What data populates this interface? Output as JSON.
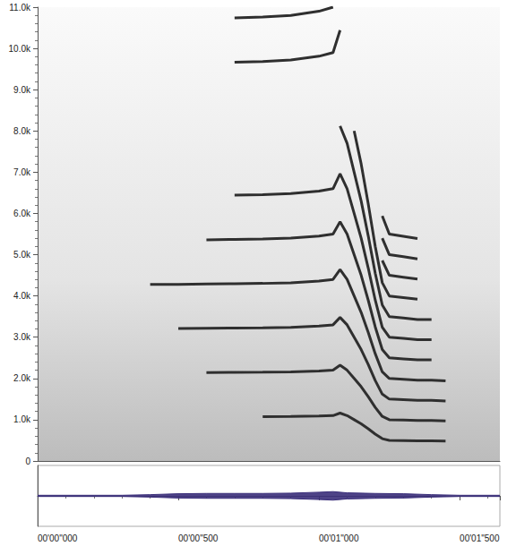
{
  "chart_data": [
    {
      "type": "line",
      "color": "#2f2f2f",
      "x": [
        400,
        500,
        600,
        700,
        800,
        900,
        1000,
        1050,
        1075,
        1100,
        1125,
        1150,
        1175,
        1200,
        1225,
        1250,
        1300,
        1350,
        1400,
        1450
      ],
      "series": [
        {
          "values": [
            null,
            null,
            null,
            null,
            1076,
            1080,
            1090,
            1100,
            1160,
            1100,
            1000,
            900,
            780,
            650,
            540,
            500,
            495,
            490,
            490,
            485
          ]
        },
        {
          "values": [
            null,
            null,
            2144,
            2148,
            2152,
            2160,
            2180,
            2200,
            2320,
            2200,
            2000,
            1800,
            1560,
            1300,
            1080,
            1000,
            990,
            980,
            980,
            970
          ]
        },
        {
          "values": [
            null,
            3210,
            3216,
            3222,
            3228,
            3240,
            3270,
            3300,
            3480,
            3300,
            3000,
            2700,
            2340,
            1950,
            1620,
            1500,
            1485,
            1470,
            1470,
            1455
          ]
        },
        {
          "values": [
            4280,
            4280,
            4288,
            4296,
            4304,
            4320,
            4360,
            4400,
            4640,
            4400,
            4000,
            3600,
            3120,
            2600,
            2160,
            2000,
            1980,
            1960,
            1960,
            1940
          ]
        },
        {
          "values": [
            null,
            null,
            5360,
            5370,
            5380,
            5400,
            5450,
            5500,
            5800,
            5500,
            5000,
            4500,
            3900,
            3250,
            2700,
            2500,
            2475,
            2450,
            2450,
            null
          ]
        },
        {
          "values": [
            null,
            null,
            null,
            6444,
            6456,
            6480,
            6540,
            6600,
            6960,
            6600,
            6000,
            5400,
            4680,
            3900,
            3240,
            3000,
            2970,
            2940,
            2940,
            null
          ]
        },
        {
          "values": [
            null,
            null,
            null,
            null,
            null,
            null,
            null,
            null,
            8120,
            7700,
            7000,
            6300,
            5460,
            4550,
            3780,
            3500,
            3465,
            3430,
            3430,
            null
          ]
        },
        {
          "values": [
            null,
            null,
            null,
            null,
            null,
            null,
            null,
            null,
            null,
            null,
            8000,
            7200,
            6240,
            5200,
            4320,
            4000,
            3960,
            3920,
            null,
            null
          ]
        },
        {
          "values": [
            null,
            null,
            null,
            9666,
            9684,
            9720,
            9810,
            9900,
            10440,
            null,
            null,
            null,
            null,
            null,
            4860,
            4500,
            4455,
            4410,
            null,
            null
          ]
        },
        {
          "values": [
            null,
            null,
            null,
            10740,
            10760,
            10800,
            10900,
            11000,
            null,
            null,
            null,
            null,
            null,
            null,
            5400,
            5000,
            4950,
            4900,
            null,
            null
          ]
        },
        {
          "values": [
            null,
            null,
            null,
            null,
            null,
            null,
            null,
            null,
            null,
            null,
            null,
            null,
            null,
            null,
            5940,
            5500,
            5445,
            5390,
            null,
            null
          ]
        }
      ],
      "xlim": [
        0,
        1643
      ],
      "ylim": [
        0,
        11000
      ],
      "yticks": [
        0,
        {
          "value": 1000,
          "label": "1.0k"
        },
        {
          "value": 2000,
          "label": "2.0k"
        },
        {
          "value": 3000,
          "label": "3.0k"
        },
        {
          "value": 4000,
          "label": "4.0k"
        },
        {
          "value": 5000,
          "label": "5.0k"
        },
        {
          "value": 6000,
          "label": "6.0k"
        },
        {
          "value": 7000,
          "label": "7.0k"
        },
        {
          "value": 8000,
          "label": "8.0k"
        },
        {
          "value": 9000,
          "label": "9.0k"
        },
        {
          "value": 10000,
          "label": "10.0k"
        },
        {
          "value": 11000,
          "label": "11.0k"
        }
      ],
      "tick_labels": "y",
      "grid": false
    },
    {
      "type": "area",
      "color": "#3b2f7a",
      "x": [
        0,
        300,
        400,
        500,
        600,
        700,
        800,
        900,
        1000,
        1050,
        1100,
        1200,
        1300,
        1400,
        1500,
        1643
      ],
      "series": [
        {
          "values": [
            0.02,
            0.02,
            0.04,
            0.07,
            0.08,
            0.08,
            0.08,
            0.09,
            0.12,
            0.14,
            0.1,
            0.08,
            0.07,
            0.04,
            0.02,
            0.02
          ]
        },
        {
          "values": [
            -0.02,
            -0.02,
            -0.04,
            -0.07,
            -0.08,
            -0.08,
            -0.08,
            -0.09,
            -0.12,
            -0.14,
            -0.1,
            -0.08,
            -0.07,
            -0.04,
            -0.02,
            -0.02
          ]
        }
      ],
      "xlim": [
        0,
        1643
      ],
      "xticks": [
        {
          "value": 0,
          "label": "00'00\"000"
        },
        {
          "value": 500,
          "label": "00'00\"500"
        },
        {
          "value": 1000,
          "label": "00'01\"000"
        },
        {
          "value": 1500,
          "label": "00'01\"500"
        }
      ],
      "ylim": [
        -1,
        1
      ],
      "tick_labels": "x",
      "grid": false
    }
  ]
}
